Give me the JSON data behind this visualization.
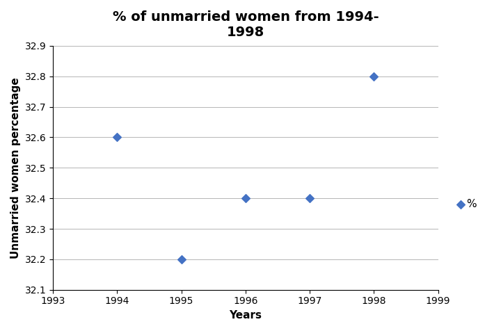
{
  "title": "% of unmarried women from 1994-\n1998",
  "xlabel": "Years",
  "ylabel": "Unmarried women percentage",
  "x": [
    1994,
    1995,
    1996,
    1997,
    1998
  ],
  "y": [
    32.6,
    32.2,
    32.4,
    32.4,
    32.8
  ],
  "xlim": [
    1993,
    1999
  ],
  "ylim": [
    32.1,
    32.9
  ],
  "yticks": [
    32.1,
    32.2,
    32.3,
    32.4,
    32.5,
    32.6,
    32.7,
    32.8,
    32.9
  ],
  "xticks": [
    1993,
    1994,
    1995,
    1996,
    1997,
    1998,
    1999
  ],
  "marker_color": "#4472C4",
  "marker": "D",
  "marker_size": 6,
  "legend_label": "%",
  "background_color": "#ffffff",
  "grid_color": "#999999",
  "title_fontsize": 14,
  "axis_label_fontsize": 11,
  "tick_fontsize": 10
}
